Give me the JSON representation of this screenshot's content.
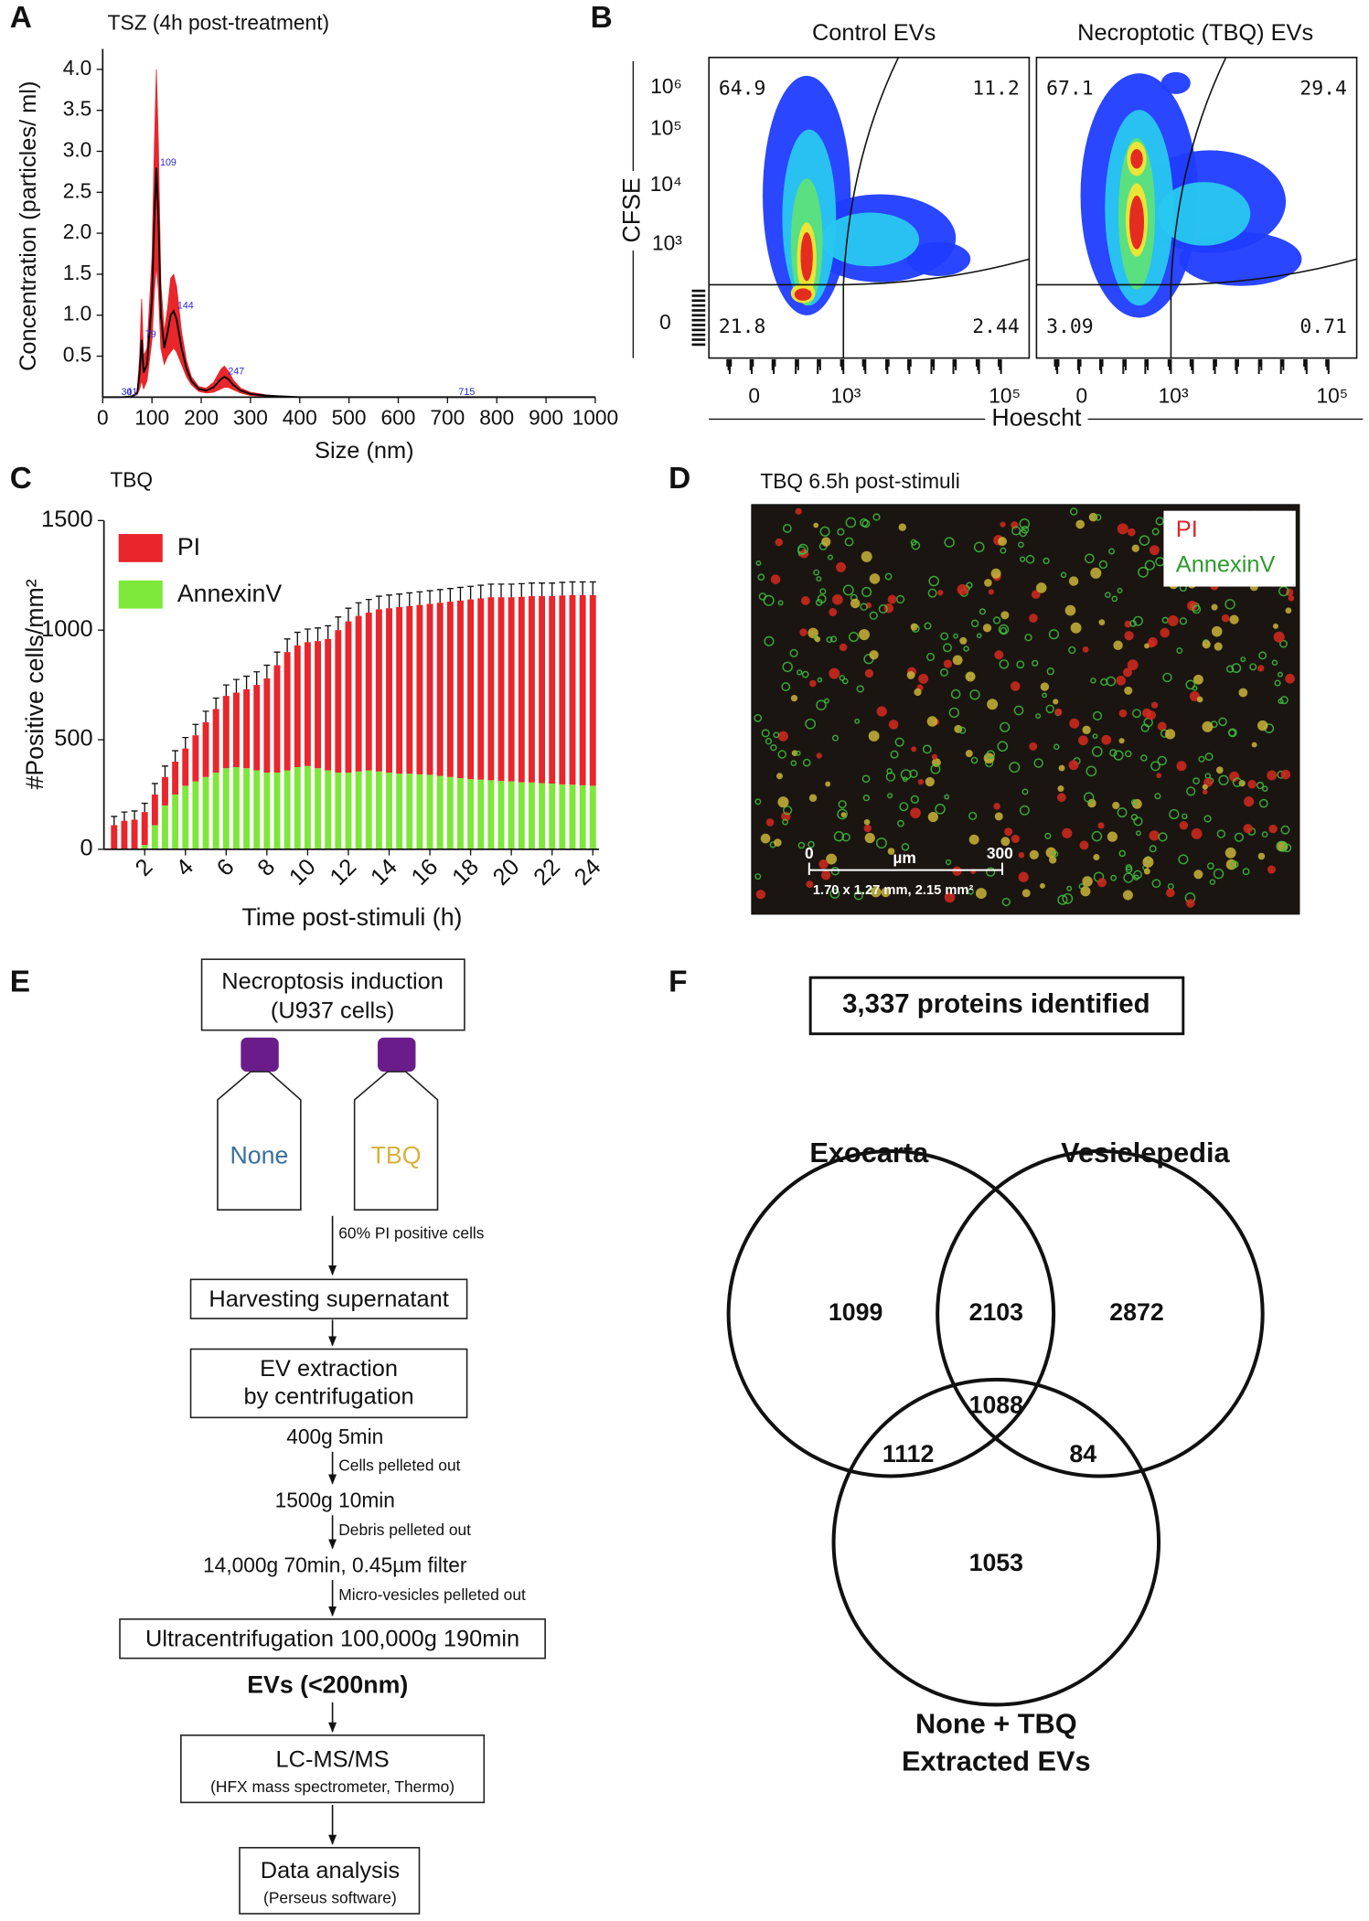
{
  "chart_data": [
    {
      "type": "line",
      "panel": "A",
      "title": "TSZ (4h post-treatment)",
      "x_label": "Size (nm)",
      "y_label": "Concentration (particles/ ml)",
      "x": [
        0,
        20,
        40,
        60,
        70,
        75,
        79,
        83,
        90,
        100,
        105,
        109,
        113,
        118,
        125,
        132,
        138,
        144,
        150,
        160,
        170,
        180,
        195,
        210,
        225,
        240,
        247,
        255,
        265,
        280,
        300,
        330,
        360,
        400,
        450,
        500,
        600,
        700,
        800,
        900,
        1000
      ],
      "values": [
        0,
        0,
        0,
        0.01,
        0.05,
        0.3,
        0.7,
        0.3,
        0.4,
        1.2,
        2.2,
        2.8,
        2.2,
        1.0,
        0.6,
        0.8,
        1.0,
        1.05,
        0.95,
        0.6,
        0.35,
        0.2,
        0.1,
        0.08,
        0.12,
        0.22,
        0.25,
        0.22,
        0.15,
        0.08,
        0.04,
        0.02,
        0.01,
        0,
        0,
        0,
        0,
        0,
        0,
        0,
        0
      ],
      "errors": [
        0,
        0,
        0,
        0,
        0.02,
        0.2,
        0.5,
        0.2,
        0.2,
        0.5,
        0.9,
        1.2,
        0.9,
        0.4,
        0.2,
        0.3,
        0.45,
        0.45,
        0.4,
        0.2,
        0.1,
        0.05,
        0.03,
        0.03,
        0.06,
        0.12,
        0.13,
        0.1,
        0.06,
        0.03,
        0.02,
        0.01,
        0,
        0,
        0,
        0,
        0,
        0,
        0,
        0,
        0
      ],
      "color": "#000000",
      "error_color": "#e8262b",
      "peak_labels": [
        30,
        41,
        79,
        109,
        144,
        247,
        715
      ],
      "peak_label_color": "#2a2ad0",
      "xlim": [
        0,
        1000
      ],
      "xticks": [
        0,
        100,
        200,
        300,
        400,
        500,
        600,
        700,
        800,
        900,
        1000
      ],
      "ylim": [
        0,
        4.25
      ],
      "yticks": [
        0.5,
        {
          "value": 1,
          "label": "1.0"
        },
        1.5,
        {
          "value": 2,
          "label": "2.0"
        },
        2.5,
        {
          "value": 3,
          "label": "3.0"
        },
        3.5,
        {
          "value": 4,
          "label": "4.0"
        }
      ]
    },
    {
      "type": "bar",
      "stacked": true,
      "panel": "C",
      "title": "TBQ",
      "x_label": "Time post-stimuli (h)",
      "y_label": "#Positive cells/mm²",
      "x": [
        0.5,
        1,
        1.5,
        2,
        2.5,
        3,
        3.5,
        4,
        4.5,
        5,
        5.5,
        6,
        6.5,
        7,
        7.5,
        8,
        8.5,
        9,
        9.5,
        10,
        10.5,
        11,
        11.5,
        12,
        12.5,
        13,
        13.5,
        14,
        14.5,
        15,
        15.5,
        16,
        16.5,
        17,
        17.5,
        18,
        18.5,
        19,
        19.5,
        20,
        20.5,
        21,
        21.5,
        22,
        22.5,
        23,
        23.5,
        24
      ],
      "series": [
        {
          "name": "PI",
          "color": "#e8262b",
          "values": [
            110,
            130,
            135,
            150,
            140,
            130,
            150,
            170,
            210,
            250,
            290,
            330,
            340,
            360,
            390,
            430,
            490,
            540,
            555,
            565,
            580,
            600,
            650,
            690,
            710,
            720,
            740,
            750,
            760,
            765,
            773,
            780,
            790,
            800,
            810,
            820,
            827,
            835,
            838,
            840,
            846,
            850,
            853,
            855,
            862,
            865,
            868,
            870
          ],
          "errors": [
            40,
            40,
            40,
            40,
            50,
            50,
            50,
            50,
            50,
            50,
            50,
            50,
            60,
            60,
            60,
            60,
            60,
            60,
            60,
            60,
            60,
            60,
            60,
            60,
            60,
            60,
            60,
            60,
            60,
            60,
            60,
            60,
            60,
            60,
            60,
            60,
            60,
            60,
            60,
            60,
            60,
            60,
            60,
            60,
            60,
            60,
            60,
            60
          ]
        },
        {
          "name": "AnnexinV",
          "color": "#7de83a",
          "values": [
            0,
            0,
            0,
            20,
            110,
            200,
            250,
            290,
            310,
            330,
            350,
            370,
            375,
            370,
            360,
            350,
            350,
            360,
            375,
            380,
            370,
            360,
            350,
            350,
            355,
            360,
            355,
            350,
            345,
            345,
            342,
            340,
            335,
            330,
            325,
            320,
            318,
            315,
            312,
            310,
            306,
            305,
            302,
            300,
            296,
            295,
            292,
            290
          ]
        }
      ],
      "xlim": [
        0,
        24.3
      ],
      "xticks": [
        2,
        4,
        6,
        8,
        10,
        12,
        14,
        16,
        18,
        20,
        22,
        24
      ],
      "ylim": [
        0,
        1500
      ],
      "yticks": [
        0,
        500,
        1000,
        1500
      ]
    }
  ],
  "flow_cytometry": {
    "panel": "B",
    "y_label": "CFSE",
    "x_label": "Hoescht",
    "y_ticks": [
      "10⁶",
      "10⁵",
      "10⁴",
      "10³",
      "0"
    ],
    "x_ticks": [
      "0",
      "10³",
      "10⁵"
    ],
    "plots": [
      {
        "title": "Control EVs",
        "upper_left": 64.9,
        "upper_right": 11.2,
        "lower_left": 21.8,
        "lower_right": 2.44
      },
      {
        "title": "Necroptotic (TBQ) EVs",
        "upper_left": 67.1,
        "upper_right": 29.4,
        "lower_left": 3.09,
        "lower_right": 0.71
      }
    ]
  },
  "microscopy": {
    "panel": "D",
    "title": "TBQ 6.5h post-stimuli",
    "legend": [
      "PI",
      "AnnexinV"
    ],
    "scale_start": "0",
    "scale_unit": "µm",
    "scale_end": "300",
    "field": "1.70 x 1.27 mm, 2.15 mm²"
  },
  "workflow": {
    "panel": "E",
    "induction": [
      "Necroptosis induction",
      "(U937 cells)"
    ],
    "conditions": [
      "None",
      "TBQ"
    ],
    "criterion": "60% PI positive cells",
    "harvest": "Harvesting supernatant",
    "extraction": [
      "EV extraction",
      "by centrifugation"
    ],
    "spins": [
      "400g 5min",
      "1500g 10min",
      "14,000g 70min, 0.45µm filter"
    ],
    "pellets": [
      "Cells pelleted out",
      "Debris pelleted out",
      "Micro-vesicles pelleted out"
    ],
    "ultracentrifugation": "Ultracentrifugation 100,000g 190min",
    "product": "EVs (<200nm)",
    "ms": [
      "LC-MS/MS",
      "(HFX mass spectrometer, Thermo)"
    ],
    "analysis": [
      "Data analysis",
      "(Perseus software)"
    ]
  },
  "venn": {
    "panel": "F",
    "title": "3,337 proteins identified",
    "sets": [
      "Exocarta",
      "Vesiclepedia",
      "None + TBQ",
      "Extracted EVs"
    ],
    "regions": {
      "exocarta_only": 1099,
      "exocarta_vesiclepedia": 2103,
      "vesiclepedia_only": 2872,
      "all_three": 1088,
      "exocarta_ev": 1112,
      "vesiclepedia_ev": 84,
      "ev_only": 1053
    }
  }
}
